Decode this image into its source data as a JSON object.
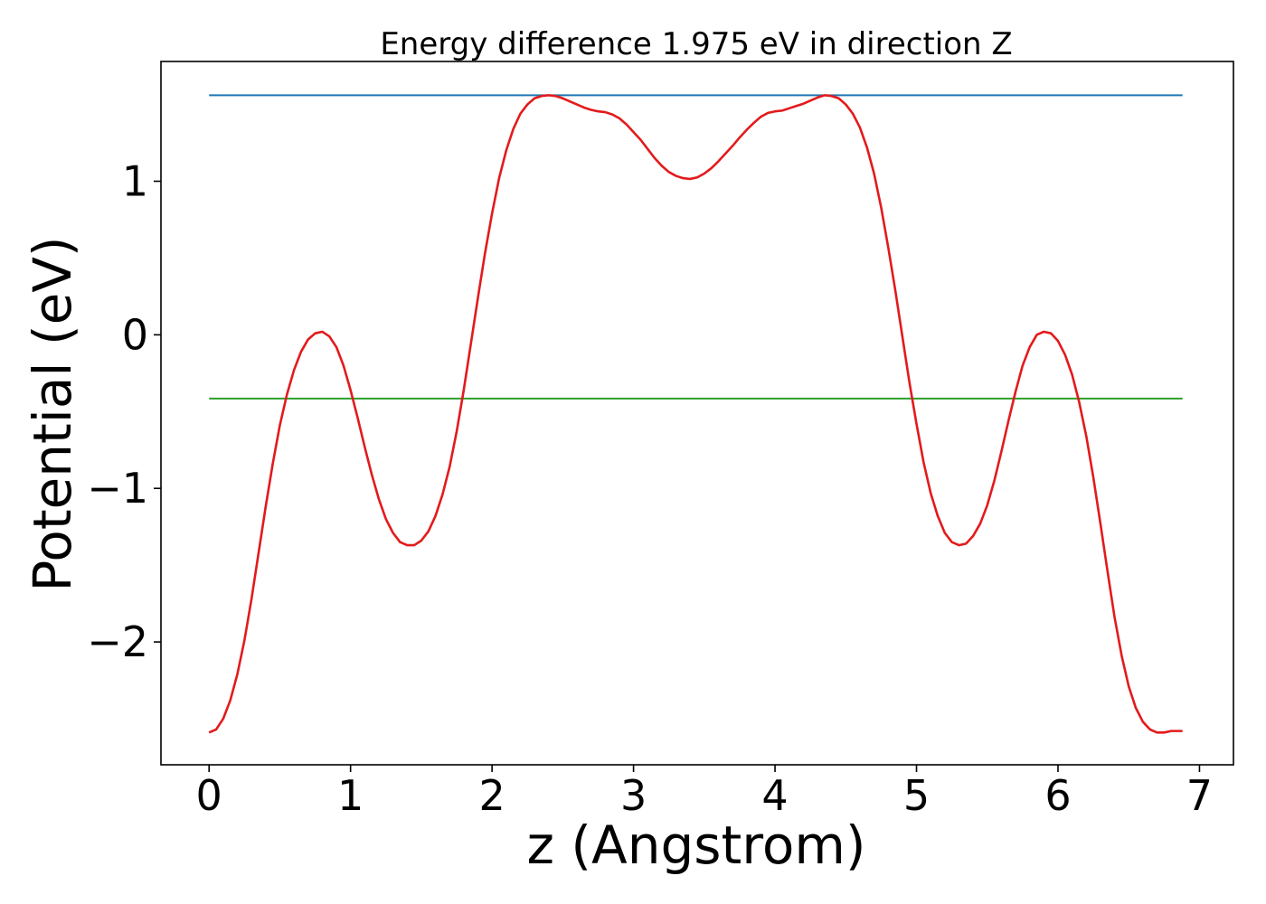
{
  "chart_data": {
    "type": "line",
    "title": "Energy difference 1.975 eV in direction Z",
    "xlabel": "z (Angstrom)",
    "ylabel": "Potential (eV)",
    "xlim": [
      -0.34,
      7.24
    ],
    "ylim": [
      -2.8,
      1.78
    ],
    "grid": false,
    "x_ticks": [
      {
        "value": 0,
        "label": "0"
      },
      {
        "value": 1,
        "label": "1"
      },
      {
        "value": 2,
        "label": "2"
      },
      {
        "value": 3,
        "label": "3"
      },
      {
        "value": 4,
        "label": "4"
      },
      {
        "value": 5,
        "label": "5"
      },
      {
        "value": 6,
        "label": "6"
      },
      {
        "value": 7,
        "label": "7"
      }
    ],
    "y_ticks": [
      {
        "value": 1,
        "label": "1"
      },
      {
        "value": 0,
        "label": "0"
      },
      {
        "value": -1,
        "label": "−1"
      },
      {
        "value": -2,
        "label": "−2"
      }
    ],
    "reference_lines": [
      {
        "y": 1.56,
        "x_range": [
          0,
          6.88
        ],
        "color": "#1f77b4"
      },
      {
        "y": -0.415,
        "x_range": [
          0,
          6.88
        ],
        "color": "#2ca02c"
      }
    ],
    "series": [
      {
        "color": "#e31a1c",
        "points": [
          [
            0.0,
            -2.59
          ],
          [
            0.05,
            -2.57
          ],
          [
            0.1,
            -2.5
          ],
          [
            0.15,
            -2.38
          ],
          [
            0.2,
            -2.21
          ],
          [
            0.25,
            -1.99
          ],
          [
            0.3,
            -1.72
          ],
          [
            0.35,
            -1.42
          ],
          [
            0.4,
            -1.12
          ],
          [
            0.45,
            -0.84
          ],
          [
            0.5,
            -0.59
          ],
          [
            0.55,
            -0.39
          ],
          [
            0.6,
            -0.23
          ],
          [
            0.65,
            -0.11
          ],
          [
            0.7,
            -0.03
          ],
          [
            0.75,
            0.01
          ],
          [
            0.8,
            0.02
          ],
          [
            0.85,
            -0.01
          ],
          [
            0.9,
            -0.08
          ],
          [
            0.95,
            -0.2
          ],
          [
            1.0,
            -0.36
          ],
          [
            1.05,
            -0.54
          ],
          [
            1.1,
            -0.73
          ],
          [
            1.15,
            -0.91
          ],
          [
            1.2,
            -1.07
          ],
          [
            1.25,
            -1.2
          ],
          [
            1.3,
            -1.29
          ],
          [
            1.35,
            -1.35
          ],
          [
            1.4,
            -1.37
          ],
          [
            1.45,
            -1.37
          ],
          [
            1.5,
            -1.34
          ],
          [
            1.55,
            -1.28
          ],
          [
            1.6,
            -1.18
          ],
          [
            1.65,
            -1.04
          ],
          [
            1.7,
            -0.86
          ],
          [
            1.75,
            -0.63
          ],
          [
            1.8,
            -0.36
          ],
          [
            1.85,
            -0.06
          ],
          [
            1.9,
            0.24
          ],
          [
            1.95,
            0.53
          ],
          [
            2.0,
            0.79
          ],
          [
            2.05,
            1.02
          ],
          [
            2.1,
            1.2
          ],
          [
            2.15,
            1.34
          ],
          [
            2.2,
            1.44
          ],
          [
            2.25,
            1.5
          ],
          [
            2.3,
            1.54
          ],
          [
            2.35,
            1.555
          ],
          [
            2.4,
            1.56
          ],
          [
            2.45,
            1.555
          ],
          [
            2.5,
            1.54
          ],
          [
            2.55,
            1.52
          ],
          [
            2.6,
            1.5
          ],
          [
            2.65,
            1.48
          ],
          [
            2.7,
            1.465
          ],
          [
            2.75,
            1.455
          ],
          [
            2.8,
            1.45
          ],
          [
            2.85,
            1.435
          ],
          [
            2.9,
            1.41
          ],
          [
            2.95,
            1.37
          ],
          [
            3.0,
            1.32
          ],
          [
            3.05,
            1.27
          ],
          [
            3.1,
            1.21
          ],
          [
            3.15,
            1.15
          ],
          [
            3.2,
            1.1
          ],
          [
            3.25,
            1.06
          ],
          [
            3.3,
            1.035
          ],
          [
            3.35,
            1.02
          ],
          [
            3.4,
            1.015
          ],
          [
            3.45,
            1.025
          ],
          [
            3.5,
            1.05
          ],
          [
            3.55,
            1.085
          ],
          [
            3.6,
            1.13
          ],
          [
            3.65,
            1.18
          ],
          [
            3.7,
            1.23
          ],
          [
            3.75,
            1.285
          ],
          [
            3.8,
            1.335
          ],
          [
            3.85,
            1.38
          ],
          [
            3.9,
            1.42
          ],
          [
            3.95,
            1.445
          ],
          [
            4.0,
            1.455
          ],
          [
            4.05,
            1.46
          ],
          [
            4.1,
            1.475
          ],
          [
            4.15,
            1.49
          ],
          [
            4.2,
            1.505
          ],
          [
            4.25,
            1.525
          ],
          [
            4.3,
            1.545
          ],
          [
            4.35,
            1.56
          ],
          [
            4.4,
            1.555
          ],
          [
            4.45,
            1.54
          ],
          [
            4.5,
            1.5
          ],
          [
            4.55,
            1.44
          ],
          [
            4.6,
            1.35
          ],
          [
            4.65,
            1.22
          ],
          [
            4.7,
            1.05
          ],
          [
            4.75,
            0.83
          ],
          [
            4.8,
            0.57
          ],
          [
            4.85,
            0.29
          ],
          [
            4.9,
            -0.01
          ],
          [
            4.95,
            -0.31
          ],
          [
            5.0,
            -0.58
          ],
          [
            5.05,
            -0.83
          ],
          [
            5.1,
            -1.03
          ],
          [
            5.15,
            -1.18
          ],
          [
            5.2,
            -1.29
          ],
          [
            5.25,
            -1.35
          ],
          [
            5.3,
            -1.37
          ],
          [
            5.35,
            -1.36
          ],
          [
            5.4,
            -1.31
          ],
          [
            5.45,
            -1.23
          ],
          [
            5.5,
            -1.11
          ],
          [
            5.55,
            -0.95
          ],
          [
            5.6,
            -0.76
          ],
          [
            5.65,
            -0.56
          ],
          [
            5.7,
            -0.37
          ],
          [
            5.75,
            -0.2
          ],
          [
            5.8,
            -0.08
          ],
          [
            5.85,
            0.0
          ],
          [
            5.9,
            0.02
          ],
          [
            5.95,
            0.01
          ],
          [
            6.0,
            -0.04
          ],
          [
            6.05,
            -0.13
          ],
          [
            6.1,
            -0.26
          ],
          [
            6.15,
            -0.44
          ],
          [
            6.2,
            -0.66
          ],
          [
            6.25,
            -0.93
          ],
          [
            6.3,
            -1.23
          ],
          [
            6.35,
            -1.54
          ],
          [
            6.4,
            -1.84
          ],
          [
            6.45,
            -2.09
          ],
          [
            6.5,
            -2.29
          ],
          [
            6.55,
            -2.43
          ],
          [
            6.6,
            -2.52
          ],
          [
            6.65,
            -2.57
          ],
          [
            6.7,
            -2.59
          ],
          [
            6.75,
            -2.59
          ],
          [
            6.8,
            -2.58
          ],
          [
            6.88,
            -2.58
          ]
        ]
      }
    ]
  }
}
